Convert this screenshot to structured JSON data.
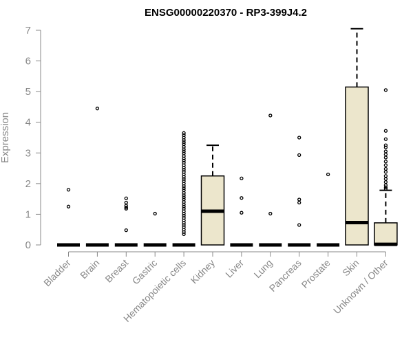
{
  "chart_data": {
    "type": "boxplot",
    "title": "ENSG00000220370 - RP3-399J4.2",
    "ylabel": "Expression",
    "xlabel": "",
    "ylim": [
      0,
      7
    ],
    "yticks": [
      "0",
      "1",
      "2",
      "3",
      "4",
      "5",
      "6",
      "7"
    ],
    "box_fill": "#ece6cc",
    "categories": [
      "Bladder",
      "Brain",
      "Breast",
      "Gastric",
      "Hematopoietic cells",
      "Kidney",
      "Liver",
      "Lung",
      "Pancreas",
      "Prostate",
      "Skin",
      "Unknown / Other"
    ],
    "boxes": [
      {
        "q1": 0,
        "median": 0,
        "q3": 0,
        "whisker_low": 0,
        "whisker_high": 0,
        "outliers": [
          1.8,
          1.25
        ]
      },
      {
        "q1": 0,
        "median": 0,
        "q3": 0,
        "whisker_low": 0,
        "whisker_high": 0,
        "outliers": [
          4.45
        ]
      },
      {
        "q1": 0,
        "median": 0,
        "q3": 0,
        "whisker_low": 0,
        "whisker_high": 0,
        "outliers": [
          1.52,
          1.38,
          1.28,
          1.22,
          1.18,
          0.48
        ]
      },
      {
        "q1": 0,
        "median": 0,
        "q3": 0,
        "whisker_low": 0,
        "whisker_high": 0,
        "outliers": [
          1.02
        ]
      },
      {
        "q1": 0,
        "median": 0,
        "q3": 0,
        "whisker_low": 0,
        "whisker_high": 0,
        "outliers": [
          3.65,
          3.58,
          3.5,
          3.42,
          3.35,
          3.28,
          3.2,
          3.12,
          3.05,
          2.98,
          2.9,
          2.82,
          2.75,
          2.68,
          2.6,
          2.52,
          2.45,
          2.38,
          2.3,
          2.22,
          2.15,
          2.08,
          2.0,
          1.92,
          1.85,
          1.78,
          1.7,
          1.62,
          1.55,
          1.48,
          1.4,
          1.32,
          1.25,
          1.18,
          1.1,
          1.02,
          0.95,
          0.88,
          0.8,
          0.72,
          0.65,
          0.58,
          0.5,
          0.42,
          0.35
        ]
      },
      {
        "q1": 0,
        "median": 1.1,
        "q3": 2.25,
        "whisker_low": 0,
        "whisker_high": 3.25,
        "outliers": []
      },
      {
        "q1": 0,
        "median": 0,
        "q3": 0,
        "whisker_low": 0,
        "whisker_high": 0,
        "outliers": [
          2.17,
          1.53,
          1.05
        ]
      },
      {
        "q1": 0,
        "median": 0,
        "q3": 0,
        "whisker_low": 0,
        "whisker_high": 0,
        "outliers": [
          4.22,
          1.02
        ]
      },
      {
        "q1": 0,
        "median": 0,
        "q3": 0,
        "whisker_low": 0,
        "whisker_high": 0,
        "outliers": [
          3.5,
          2.93,
          1.48,
          1.38,
          0.65
        ]
      },
      {
        "q1": 0,
        "median": 0,
        "q3": 0,
        "whisker_low": 0,
        "whisker_high": 0,
        "outliers": [
          2.3
        ]
      },
      {
        "q1": 0,
        "median": 0.73,
        "q3": 5.15,
        "whisker_low": 0,
        "whisker_high": 7.05,
        "outliers": []
      },
      {
        "q1": 0,
        "median": 0.02,
        "q3": 0.72,
        "whisker_low": 0,
        "whisker_high": 1.78,
        "outliers": [
          5.05,
          3.72,
          3.45,
          3.25,
          3.18,
          3.05,
          2.95,
          2.85,
          2.72,
          2.6,
          2.48,
          2.38,
          2.25,
          2.15,
          2.05,
          1.95,
          1.88,
          1.83
        ]
      }
    ]
  }
}
